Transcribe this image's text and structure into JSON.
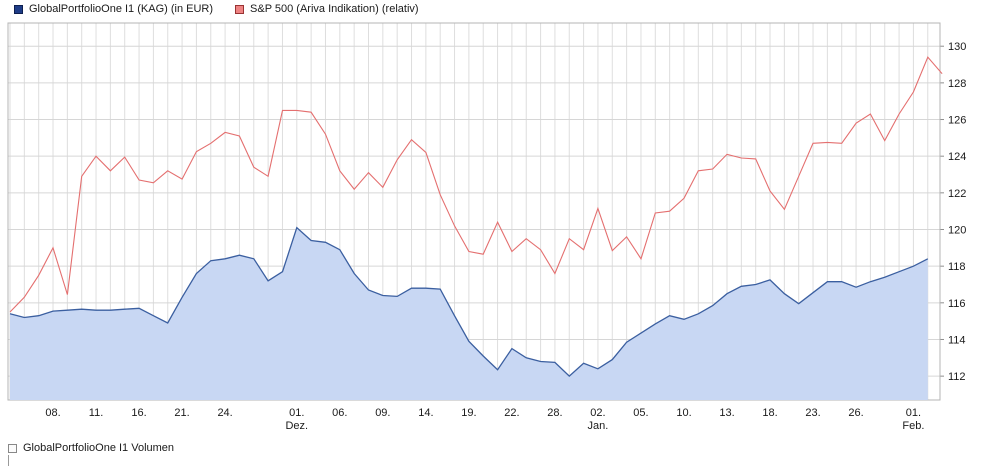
{
  "legend_top": [
    {
      "label": "GlobalPortfolioOne I1 (KAG) (in EUR)",
      "color": "#1e3c87",
      "border": "#0e1f4f"
    },
    {
      "label": "S&P 500 (Ariva Indikation) (relativ)",
      "color": "#ee8383",
      "border": "#993333"
    }
  ],
  "legend_bottom": [
    {
      "label": "GlobalPortfolioOne I1 Volumen",
      "color": "#fbfbfb",
      "border": "#888888"
    }
  ],
  "chart_data": {
    "type": "line",
    "title": "",
    "xlabel": "",
    "ylabel": "",
    "ylim": [
      111.0,
      130.8
    ],
    "y_ticks": [
      112,
      114,
      116,
      118,
      120,
      122,
      124,
      126,
      128,
      130
    ],
    "grid": "on",
    "legend_position": "top-left",
    "x_unit": "trading days, November to February",
    "x_labels": [
      {
        "day": 3,
        "line1": "08.",
        "line2": ""
      },
      {
        "day": 6,
        "line1": "11.",
        "line2": ""
      },
      {
        "day": 9,
        "line1": "16.",
        "line2": ""
      },
      {
        "day": 12,
        "line1": "21.",
        "line2": ""
      },
      {
        "day": 15,
        "line1": "24.",
        "line2": ""
      },
      {
        "day": 20,
        "line1": "01.",
        "line2": "Dez."
      },
      {
        "day": 23,
        "line1": "06.",
        "line2": ""
      },
      {
        "day": 26,
        "line1": "09.",
        "line2": ""
      },
      {
        "day": 29,
        "line1": "14.",
        "line2": ""
      },
      {
        "day": 32,
        "line1": "19.",
        "line2": ""
      },
      {
        "day": 35,
        "line1": "22.",
        "line2": ""
      },
      {
        "day": 38,
        "line1": "28.",
        "line2": ""
      },
      {
        "day": 41,
        "line1": "02.",
        "line2": "Jan."
      },
      {
        "day": 44,
        "line1": "05.",
        "line2": ""
      },
      {
        "day": 47,
        "line1": "10.",
        "line2": ""
      },
      {
        "day": 50,
        "line1": "13.",
        "line2": ""
      },
      {
        "day": 53,
        "line1": "18.",
        "line2": ""
      },
      {
        "day": 56,
        "line1": "23.",
        "line2": ""
      },
      {
        "day": 59,
        "line1": "26.",
        "line2": ""
      },
      {
        "day": 63,
        "line1": "01.",
        "line2": "Feb."
      }
    ],
    "series": [
      {
        "name": "GlobalPortfolioOne I1 (KAG) (in EUR)",
        "style": "area",
        "line_color": "#3b5fa0",
        "fill_color": "#c8d7f3",
        "values": [
          115.4,
          115.2,
          115.3,
          115.55,
          115.6,
          115.65,
          115.6,
          115.6,
          115.65,
          115.7,
          115.3,
          114.9,
          116.3,
          117.6,
          118.3,
          118.4,
          118.6,
          118.4,
          117.2,
          117.7,
          120.1,
          119.4,
          119.3,
          118.9,
          117.6,
          116.7,
          116.4,
          116.35,
          116.8,
          116.8,
          116.75,
          115.3,
          113.9,
          113.1,
          112.35,
          113.5,
          113.0,
          112.8,
          112.75,
          112.0,
          112.7,
          112.4,
          112.9,
          113.85,
          114.35,
          114.85,
          115.3,
          115.1,
          115.4,
          115.85,
          116.5,
          116.9,
          117.0,
          117.25,
          116.5,
          115.95,
          116.55,
          117.15,
          117.15,
          116.85,
          117.15,
          117.4,
          117.7,
          118.0,
          118.4
        ]
      },
      {
        "name": "S&P 500 (Ariva Indikation) (relativ)",
        "style": "line",
        "line_color": "#e46f6f",
        "values": [
          115.5,
          116.3,
          117.5,
          119.0,
          116.45,
          122.9,
          124.0,
          123.2,
          123.95,
          122.7,
          122.55,
          123.2,
          122.75,
          124.25,
          124.7,
          125.3,
          125.1,
          123.4,
          122.9,
          126.5,
          126.5,
          126.4,
          125.2,
          123.2,
          122.2,
          123.1,
          122.3,
          123.8,
          124.9,
          124.2,
          121.9,
          120.2,
          118.8,
          118.65,
          120.4,
          118.8,
          119.5,
          118.9,
          117.6,
          119.5,
          118.9,
          121.15,
          118.85,
          119.6,
          118.4,
          120.9,
          121.0,
          121.7,
          123.2,
          123.3,
          124.1,
          123.9,
          123.85,
          122.1,
          121.1,
          122.9,
          124.7,
          124.75,
          124.7,
          125.8,
          126.3,
          124.85,
          126.3,
          127.5,
          129.4,
          128.5
        ]
      }
    ]
  },
  "colors": {
    "grid_vertical": "#dedede",
    "grid_horizontal": "#d6d6d6",
    "plot_border": "#b4b4b4",
    "axis_text": "#1a1a1a"
  }
}
